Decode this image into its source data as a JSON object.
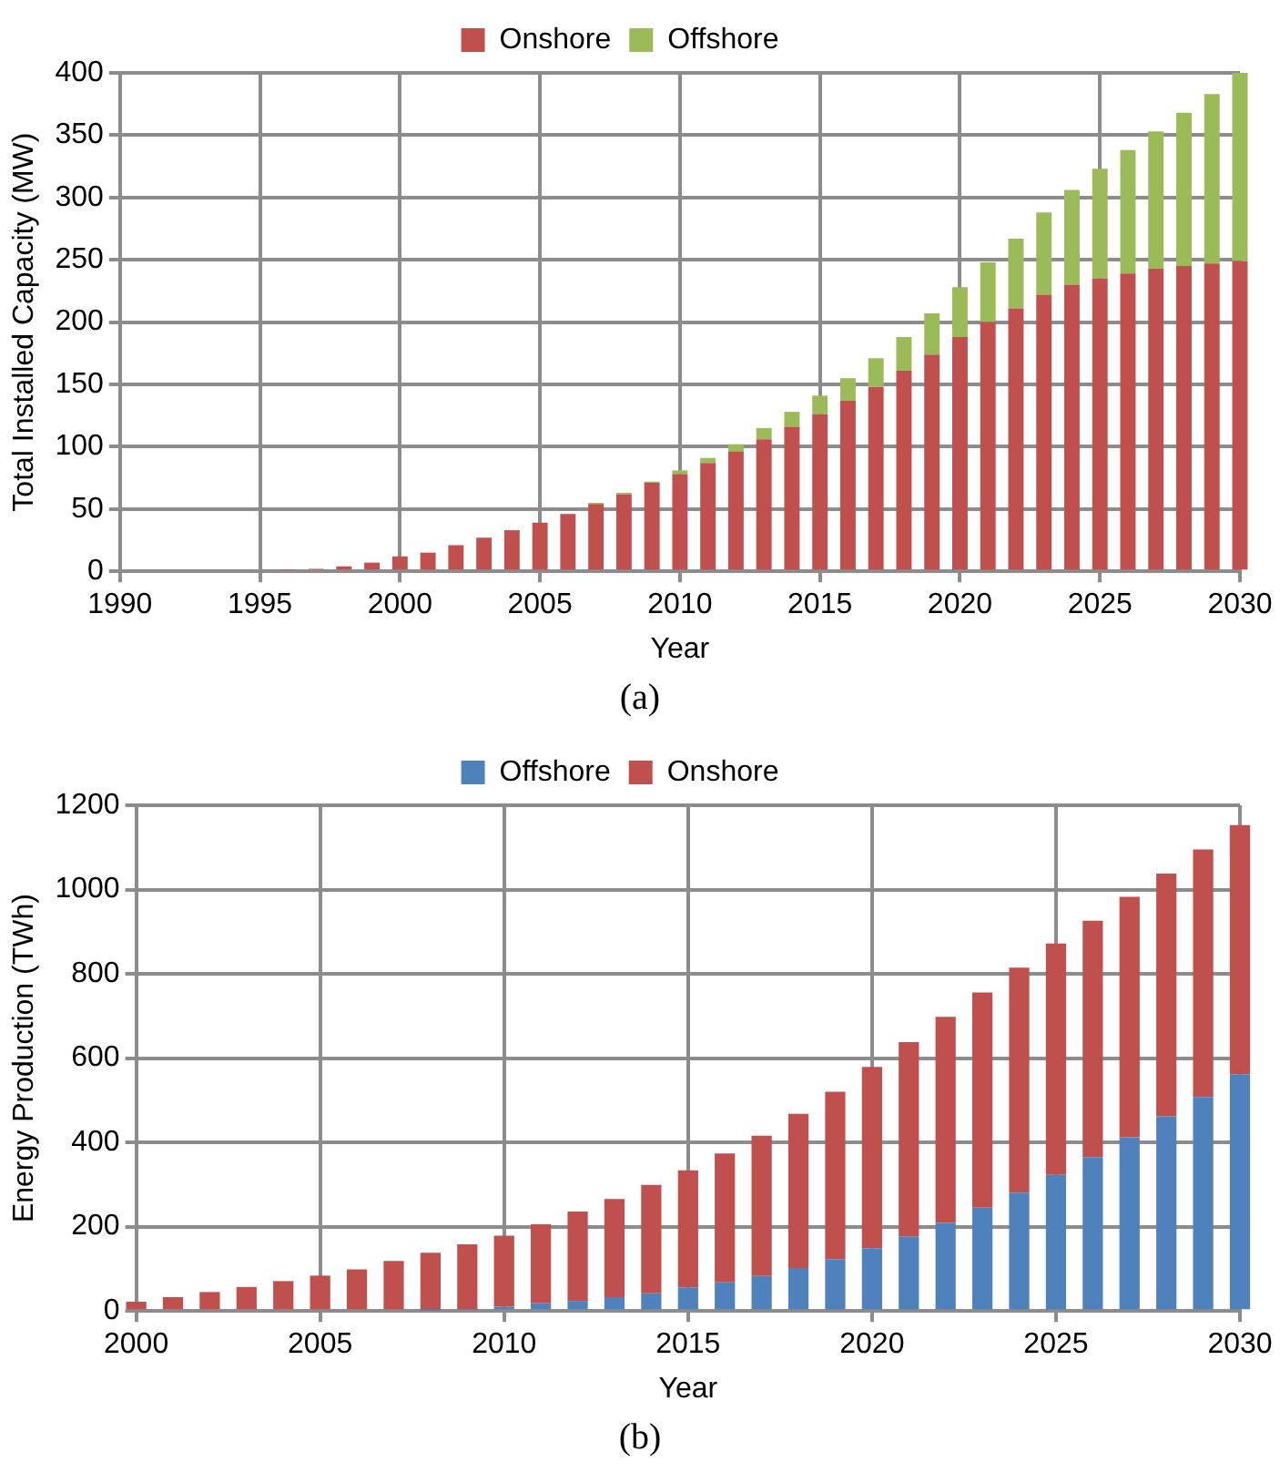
{
  "chart_data": [
    {
      "type": "bar",
      "stacked": true,
      "xlabel": "Year",
      "ylabel": "Total Installed Capacity (MW)",
      "x": [
        1996,
        1997,
        1998,
        1999,
        2000,
        2001,
        2002,
        2003,
        2004,
        2005,
        2006,
        2007,
        2008,
        2009,
        2010,
        2011,
        2012,
        2013,
        2014,
        2015,
        2016,
        2017,
        2018,
        2019,
        2020,
        2021,
        2022,
        2023,
        2024,
        2025,
        2026,
        2027,
        2028,
        2029,
        2030
      ],
      "series": [
        {
          "name": "Onshore",
          "color": "#c0504d",
          "values": [
            1,
            2,
            4,
            7,
            12,
            15,
            21,
            27,
            33,
            39,
            46,
            54,
            62,
            71,
            78,
            87,
            96,
            106,
            116,
            126,
            137,
            148,
            161,
            174,
            188,
            200,
            211,
            222,
            230,
            235,
            239,
            243,
            245,
            247,
            249
          ]
        },
        {
          "name": "Offshore",
          "color": "#9bbb59",
          "values": [
            0,
            0,
            0,
            0,
            0,
            0,
            0,
            0,
            0,
            0,
            0,
            1,
            1,
            1,
            3,
            4,
            6,
            9,
            12,
            15,
            18,
            23,
            27,
            33,
            40,
            48,
            56,
            66,
            76,
            88,
            99,
            110,
            123,
            136,
            151
          ]
        }
      ],
      "xlim": [
        1990,
        2030
      ],
      "xticks": [
        1990,
        1995,
        2000,
        2005,
        2010,
        2015,
        2020,
        2025,
        2030
      ],
      "ylim": [
        0,
        400
      ],
      "yticks": [
        0,
        50,
        100,
        150,
        200,
        250,
        300,
        350,
        400
      ],
      "grid": true,
      "legend": "top",
      "annotations": [
        "(a)"
      ]
    },
    {
      "type": "bar",
      "stacked": true,
      "xlabel": "Year",
      "ylabel": "Energy Production (TWh)",
      "x": [
        2000,
        2001,
        2002,
        2003,
        2004,
        2005,
        2006,
        2007,
        2008,
        2009,
        2010,
        2011,
        2012,
        2013,
        2014,
        2015,
        2016,
        2017,
        2018,
        2019,
        2020,
        2021,
        2022,
        2023,
        2024,
        2025,
        2026,
        2027,
        2028,
        2029,
        2030
      ],
      "series": [
        {
          "name": "Offshore",
          "color": "#4f81bd",
          "values": [
            0,
            0,
            0,
            0,
            0,
            0,
            0,
            0,
            1,
            3,
            10,
            18,
            24,
            33,
            42,
            56,
            68,
            83,
            102,
            123,
            149,
            177,
            209,
            245,
            281,
            323,
            365,
            412,
            462,
            508,
            562
          ]
        },
        {
          "name": "Onshore",
          "color": "#c0504d",
          "values": [
            22,
            33,
            45,
            57,
            71,
            84,
            99,
            119,
            137,
            155,
            169,
            188,
            212,
            233,
            257,
            278,
            306,
            333,
            366,
            397,
            430,
            461,
            489,
            511,
            534,
            549,
            561,
            571,
            576,
            587,
            591
          ]
        }
      ],
      "xlim": [
        2000,
        2030
      ],
      "xticks": [
        2000,
        2005,
        2010,
        2015,
        2020,
        2025,
        2030
      ],
      "ylim": [
        0,
        1200
      ],
      "yticks": [
        0,
        200,
        400,
        600,
        800,
        1000,
        1200
      ],
      "grid": true,
      "legend": "top",
      "annotations": [
        "(b)"
      ]
    }
  ]
}
